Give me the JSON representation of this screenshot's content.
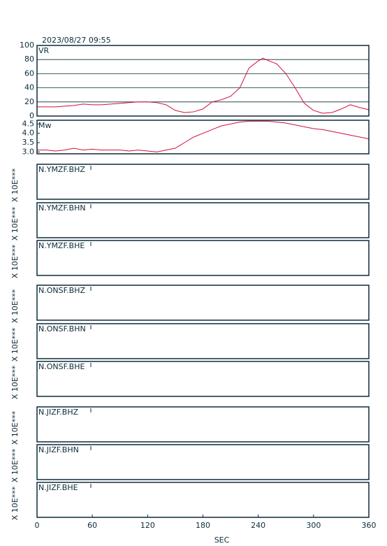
{
  "chart_data": [
    {
      "type": "line",
      "title": "2023/08/27 09:55",
      "x": [
        0,
        10,
        20,
        30,
        40,
        50,
        60,
        70,
        80,
        90,
        100,
        110,
        120,
        130,
        140,
        150,
        160,
        170,
        180,
        190,
        200,
        210,
        220,
        230,
        240,
        245,
        250,
        260,
        270,
        280,
        290,
        300,
        310,
        320,
        330,
        340,
        350,
        360
      ],
      "series": [
        {
          "name": "VR",
          "color": "#d0103a",
          "values": [
            13,
            13,
            13,
            14,
            15,
            17,
            16,
            16,
            17,
            18,
            19,
            20,
            20,
            19,
            16,
            8,
            5,
            6,
            10,
            20,
            23,
            28,
            40,
            68,
            78,
            82,
            79,
            74,
            60,
            40,
            18,
            8,
            4,
            5,
            10,
            16,
            12,
            9
          ]
        }
      ],
      "xlim": [
        0,
        360
      ],
      "ylim": [
        0,
        100
      ],
      "yticks": [
        0,
        20,
        40,
        60,
        80,
        100
      ],
      "grid": true
    },
    {
      "type": "line",
      "x": [
        0,
        10,
        20,
        30,
        40,
        50,
        60,
        70,
        80,
        90,
        100,
        110,
        120,
        130,
        140,
        150,
        160,
        170,
        180,
        190,
        200,
        210,
        220,
        230,
        240,
        250,
        260,
        270,
        280,
        290,
        300,
        310,
        320,
        330,
        340,
        350,
        360
      ],
      "series": [
        {
          "name": "Mw",
          "color": "#d0103a",
          "values": [
            3.1,
            3.1,
            3.05,
            3.1,
            3.2,
            3.1,
            3.15,
            3.1,
            3.1,
            3.1,
            3.05,
            3.1,
            3.05,
            3.0,
            3.1,
            3.2,
            3.5,
            3.8,
            4.0,
            4.2,
            4.4,
            4.5,
            4.6,
            4.65,
            4.65,
            4.65,
            4.6,
            4.55,
            4.45,
            4.35,
            4.25,
            4.2,
            4.1,
            4.0,
            3.9,
            3.8,
            3.7
          ]
        }
      ],
      "xlim": [
        0,
        360
      ],
      "ylim": [
        2.9,
        4.7
      ],
      "yticks": [
        {
          "value": 3,
          "label": "3.0"
        },
        3.5,
        {
          "value": 4,
          "label": "4.0"
        },
        4.5
      ],
      "grid": false
    },
    {
      "type": "traces",
      "panels": [
        "N.YMZF.BHZ",
        "N.YMZF.BHN",
        "N.YMZF.BHE",
        "N.ONSF.BHZ",
        "N.ONSF.BHN",
        "N.ONSF.BHE",
        "N.JIZF.BHZ",
        "N.JIZF.BHN",
        "N.JIZF.BHE"
      ],
      "ylabel": "X 10E***",
      "xlabel": "SEC",
      "xlim": [
        0,
        360
      ],
      "xticks": [
        0,
        60,
        120,
        180,
        240,
        300,
        360
      ]
    }
  ]
}
